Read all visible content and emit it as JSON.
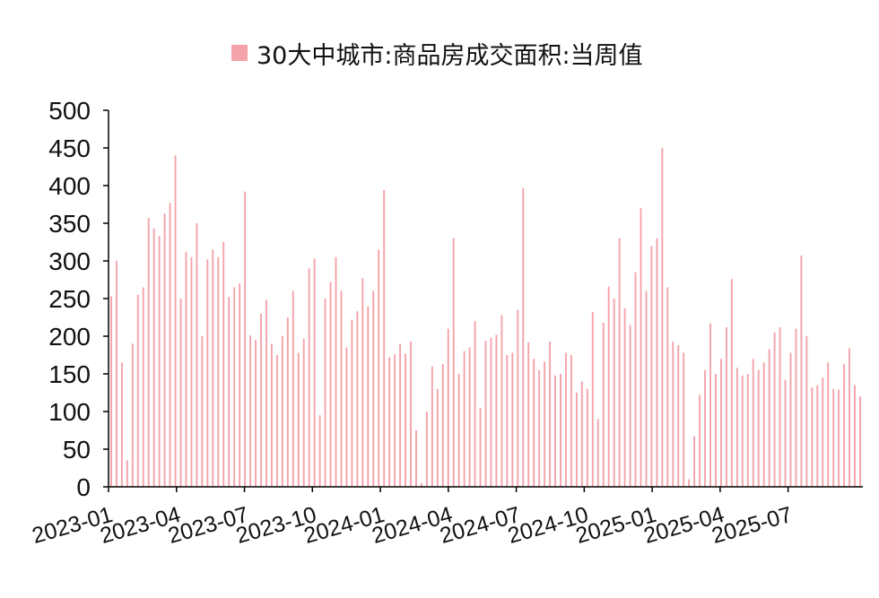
{
  "legend": {
    "label": "30大中城市:商品房成交面积:当周值",
    "color": "#f4a3aa"
  },
  "chart_data": {
    "type": "bar",
    "title": "",
    "xlabel": "",
    "ylabel": "",
    "ylim": [
      0,
      500
    ],
    "yticks": [
      0,
      50,
      100,
      150,
      200,
      250,
      300,
      350,
      400,
      450,
      500
    ],
    "x_start": "2023-01",
    "x_end": "2025-10",
    "xtick_labels": [
      "2023-01",
      "2023-04",
      "2023-07",
      "2023-10",
      "2024-01",
      "2024-04",
      "2024-07",
      "2024-10",
      "2025-01",
      "2025-04",
      "2025-07"
    ],
    "grid": false,
    "legend_position": "top",
    "series": [
      {
        "name": "30大中城市:商品房成交面积:当周值",
        "color": "#f4a3aa",
        "values": [
          253,
          300,
          165,
          35,
          190,
          255,
          265,
          357,
          343,
          333,
          363,
          377,
          440,
          250,
          312,
          305,
          350,
          200,
          302,
          315,
          305,
          325,
          252,
          265,
          270,
          392,
          201,
          195,
          230,
          248,
          190,
          175,
          200,
          225,
          260,
          178,
          197,
          290,
          303,
          95,
          250,
          272,
          305,
          260,
          185,
          222,
          233,
          277,
          240,
          260,
          315,
          394,
          172,
          176,
          190,
          177,
          193,
          75,
          5,
          100,
          160,
          130,
          163,
          210,
          330,
          150,
          180,
          185,
          220,
          105,
          194,
          198,
          202,
          228,
          175,
          178,
          235,
          397,
          192,
          170,
          155,
          166,
          193,
          148,
          150,
          178,
          175,
          125,
          140,
          130,
          232,
          90,
          218,
          266,
          250,
          330,
          237,
          215,
          285,
          370,
          260,
          320,
          330,
          450,
          265,
          193,
          188,
          178,
          10,
          67,
          122,
          155,
          217,
          150,
          170,
          212,
          276,
          158,
          148,
          150,
          170,
          155,
          165,
          183,
          205,
          212,
          142,
          178,
          210,
          307,
          200,
          132,
          135,
          145,
          165,
          130,
          129,
          163,
          184,
          135,
          120
        ]
      }
    ]
  }
}
